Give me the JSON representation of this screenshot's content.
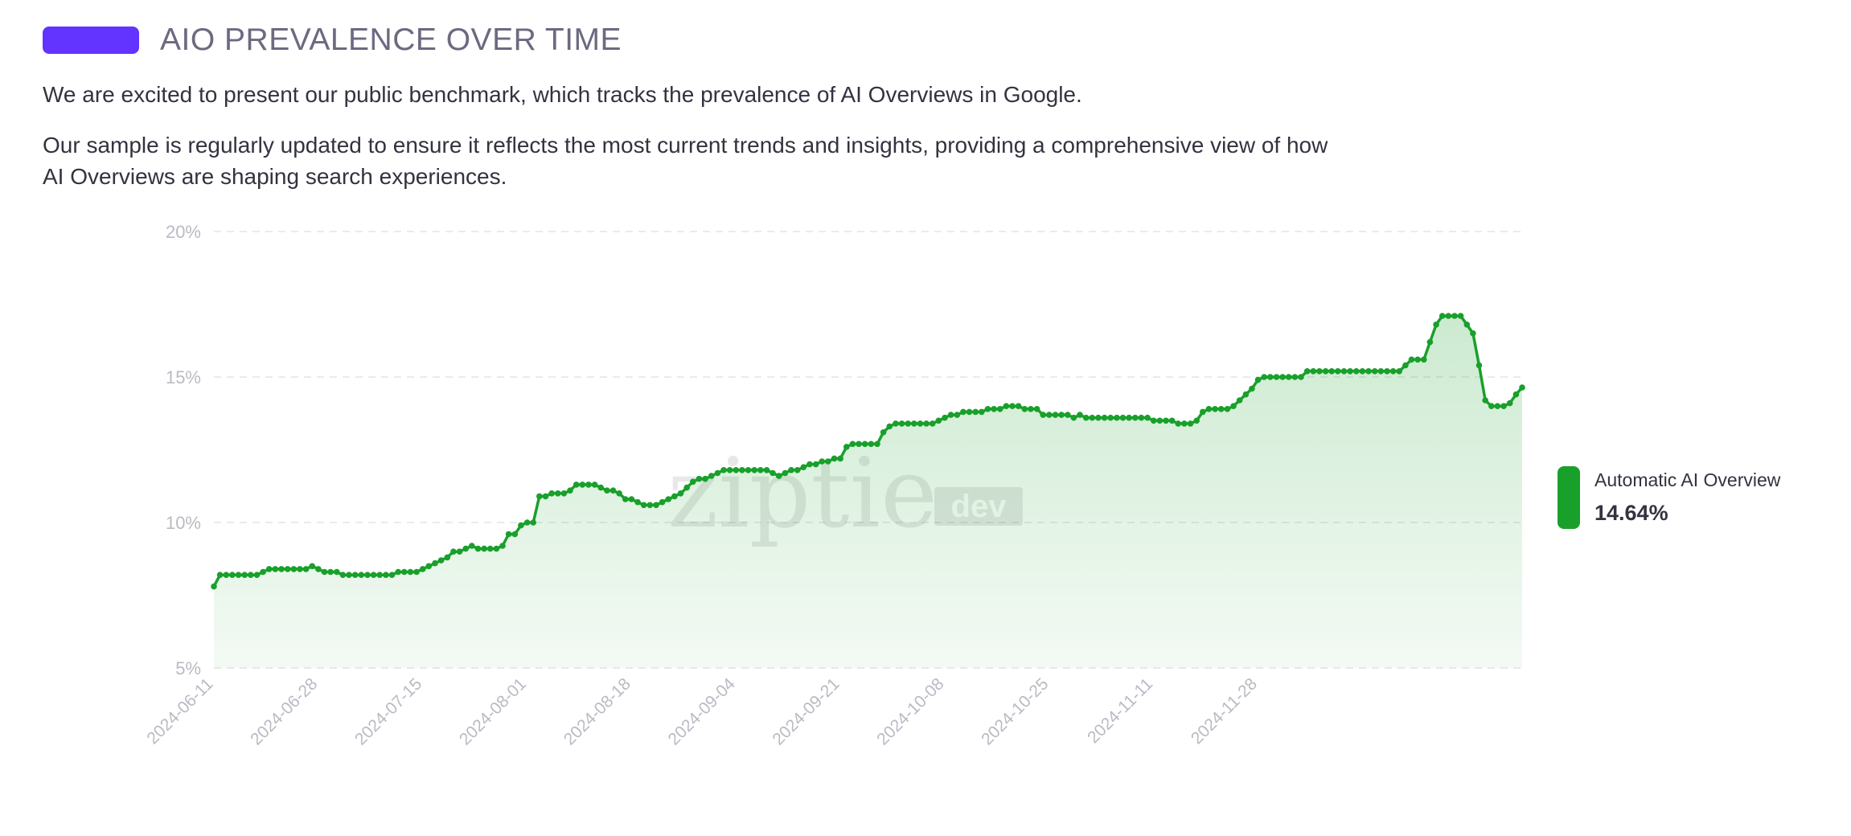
{
  "header": {
    "title": "AIO PREVALENCE OVER TIME",
    "accent_color": "#6333ff"
  },
  "intro": {
    "paragraph_1": "We are excited to present our public benchmark, which tracks the prevalence of AI Overviews in Google.",
    "paragraph_2": "Our sample is regularly updated to ensure it reflects the most current trends and insights, providing a comprehensive view of how AI Overviews are shaping search experiences."
  },
  "watermark": {
    "text_1": "ziptie",
    "text_2": "dev"
  },
  "legend": {
    "series_name": "Automatic AI Overview",
    "latest_value": "14.64%",
    "color": "#18a02b"
  },
  "chart_data": {
    "type": "area",
    "title": "",
    "xlabel": "",
    "ylabel": "",
    "ylim": [
      5,
      20
    ],
    "y_ticks": [
      "5%",
      "10%",
      "15%",
      "20%"
    ],
    "x_tick_labels": [
      "2024-06-11",
      "2024-06-28",
      "2024-07-15",
      "2024-08-01",
      "2024-08-18",
      "2024-09-04",
      "2024-09-21",
      "2024-10-08",
      "2024-10-25",
      "2024-11-11",
      "2024-11-28"
    ],
    "grid": true,
    "legend_position": "right",
    "x_start": "2024-06-11",
    "x_end": "2024-12-11",
    "series": [
      {
        "name": "Automatic AI Overview",
        "color": "#18a02b",
        "values": [
          7.8,
          8.2,
          8.2,
          8.2,
          8.2,
          8.2,
          8.2,
          8.2,
          8.3,
          8.4,
          8.4,
          8.4,
          8.4,
          8.4,
          8.4,
          8.4,
          8.5,
          8.4,
          8.3,
          8.3,
          8.3,
          8.2,
          8.2,
          8.2,
          8.2,
          8.2,
          8.2,
          8.2,
          8.2,
          8.2,
          8.3,
          8.3,
          8.3,
          8.3,
          8.4,
          8.5,
          8.6,
          8.7,
          8.8,
          9.0,
          9.0,
          9.1,
          9.2,
          9.1,
          9.1,
          9.1,
          9.1,
          9.2,
          9.6,
          9.6,
          9.9,
          10.0,
          10.0,
          10.9,
          10.9,
          11.0,
          11.0,
          11.0,
          11.1,
          11.3,
          11.3,
          11.3,
          11.3,
          11.2,
          11.1,
          11.1,
          11.0,
          10.8,
          10.8,
          10.7,
          10.6,
          10.6,
          10.6,
          10.7,
          10.8,
          10.9,
          11.0,
          11.2,
          11.4,
          11.5,
          11.5,
          11.6,
          11.7,
          11.8,
          11.8,
          11.8,
          11.8,
          11.8,
          11.8,
          11.8,
          11.8,
          11.7,
          11.6,
          11.7,
          11.8,
          11.8,
          11.9,
          12.0,
          12.0,
          12.1,
          12.1,
          12.2,
          12.2,
          12.6,
          12.7,
          12.7,
          12.7,
          12.7,
          12.7,
          13.1,
          13.3,
          13.4,
          13.4,
          13.4,
          13.4,
          13.4,
          13.4,
          13.4,
          13.5,
          13.6,
          13.7,
          13.7,
          13.8,
          13.8,
          13.8,
          13.8,
          13.9,
          13.9,
          13.9,
          14.0,
          14.0,
          14.0,
          13.9,
          13.9,
          13.9,
          13.7,
          13.7,
          13.7,
          13.7,
          13.7,
          13.6,
          13.7,
          13.6,
          13.6,
          13.6,
          13.6,
          13.6,
          13.6,
          13.6,
          13.6,
          13.6,
          13.6,
          13.6,
          13.5,
          13.5,
          13.5,
          13.5,
          13.4,
          13.4,
          13.4,
          13.5,
          13.8,
          13.9,
          13.9,
          13.9,
          13.9,
          14.0,
          14.2,
          14.4,
          14.6,
          14.9,
          15.0,
          15.0,
          15.0,
          15.0,
          15.0,
          15.0,
          15.0,
          15.2,
          15.2,
          15.2,
          15.2,
          15.2,
          15.2,
          15.2,
          15.2,
          15.2,
          15.2,
          15.2,
          15.2,
          15.2,
          15.2,
          15.2,
          15.2,
          15.4,
          15.6,
          15.6,
          15.6,
          16.2,
          16.8,
          17.1,
          17.1,
          17.1,
          17.1,
          16.8,
          16.5,
          15.4,
          14.2,
          14.0,
          14.0,
          14.0,
          14.1,
          14.4,
          14.64
        ]
      }
    ]
  }
}
